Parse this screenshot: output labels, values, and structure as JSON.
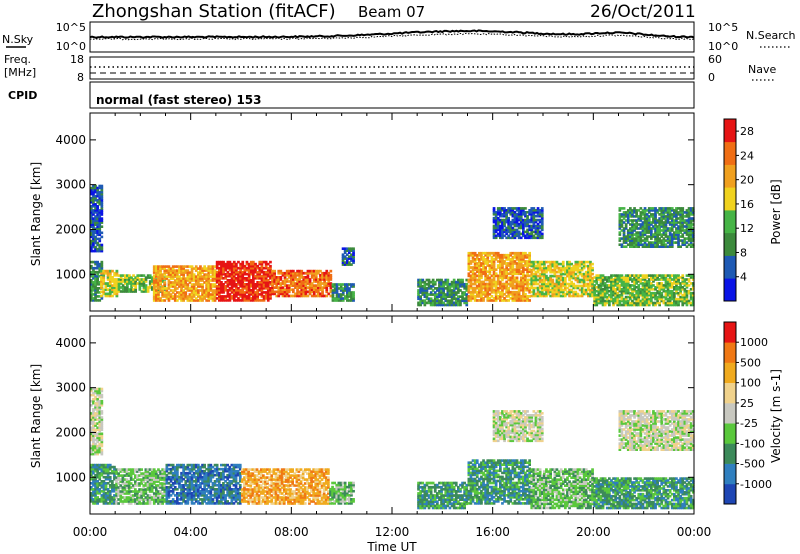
{
  "header": {
    "station": "Zhongshan Station (fitACF)",
    "beam": "Beam 07",
    "date": "26/Oct/2011"
  },
  "summary": {
    "nsky_label": "N.Sky",
    "nsky_ticks": [
      "10^5",
      "10^0"
    ],
    "nsearch_label": "N.Search",
    "nsearch_ticks": [
      "10^5",
      "10^0"
    ],
    "freq_label_1": "Freq.",
    "freq_label_2": "[MHz]",
    "freq_ticks": [
      "18",
      "8"
    ],
    "nave_label": "Nave",
    "nave_ticks": [
      "60",
      "0"
    ],
    "cpid_label": "CPID",
    "cpid_text": "normal (fast stereo) 153"
  },
  "colors": {
    "power_scale": [
      "#0a14e6",
      "#1e5ab4",
      "#3c8a3c",
      "#46b446",
      "#f0d21e",
      "#f0a01e",
      "#f06e14",
      "#e61414"
    ],
    "velocity_scale": [
      "#1e46b4",
      "#2f7fbf",
      "#3c8a5a",
      "#5ac83c",
      "#c8c8c0",
      "#f0d28c",
      "#f0aa1e",
      "#f07814",
      "#e61414"
    ]
  },
  "chart_data": [
    {
      "type": "heatmap",
      "title": "Power",
      "xlabel": "Time UT",
      "ylabel": "Slant Range [km]",
      "x_ticks": [
        "00:00",
        "04:00",
        "08:00",
        "12:00",
        "16:00",
        "20:00",
        "00:00"
      ],
      "x_range_hours": [
        0,
        24
      ],
      "y_ticks": [
        1000,
        2000,
        3000,
        4000
      ],
      "ylim": [
        180,
        4600
      ],
      "colorbar_label": "Power [dB]",
      "colorbar_ticks": [
        4,
        8,
        12,
        16,
        20,
        24,
        28
      ],
      "colorbar_range": [
        0,
        30
      ],
      "regions": [
        {
          "t": [
            0.0,
            0.5
          ],
          "r": [
            400,
            1300
          ],
          "level": 2
        },
        {
          "t": [
            0.4,
            1.1
          ],
          "r": [
            500,
            1100
          ],
          "level": 4
        },
        {
          "t": [
            1.1,
            3.0
          ],
          "r": [
            600,
            1000
          ],
          "level": 3
        },
        {
          "t": [
            2.5,
            5.0
          ],
          "r": [
            400,
            1200
          ],
          "level": 5
        },
        {
          "t": [
            5.0,
            7.2
          ],
          "r": [
            400,
            1300
          ],
          "level": 7
        },
        {
          "t": [
            7.2,
            9.6
          ],
          "r": [
            500,
            1100
          ],
          "level": 6
        },
        {
          "t": [
            9.6,
            10.5
          ],
          "r": [
            400,
            800
          ],
          "level": 2
        },
        {
          "t": [
            13.0,
            15.0
          ],
          "r": [
            300,
            900
          ],
          "level": 2
        },
        {
          "t": [
            15.0,
            17.5
          ],
          "r": [
            400,
            1500
          ],
          "level": 5
        },
        {
          "t": [
            17.5,
            20.0
          ],
          "r": [
            500,
            1300
          ],
          "level": 4
        },
        {
          "t": [
            20.0,
            24.0
          ],
          "r": [
            300,
            1000
          ],
          "level": 3
        },
        {
          "t": [
            16.0,
            18.0
          ],
          "r": [
            1800,
            2500
          ],
          "level": 1
        },
        {
          "t": [
            21.0,
            24.0
          ],
          "r": [
            1600,
            2500
          ],
          "level": 2
        },
        {
          "t": [
            0.0,
            0.5
          ],
          "r": [
            1500,
            3000
          ],
          "level": 1
        },
        {
          "t": [
            10.0,
            10.5
          ],
          "r": [
            1200,
            1600
          ],
          "level": 1
        }
      ]
    },
    {
      "type": "heatmap",
      "title": "Velocity",
      "xlabel": "Time UT",
      "ylabel": "Slant Range [km]",
      "x_ticks": [
        "00:00",
        "04:00",
        "08:00",
        "12:00",
        "16:00",
        "20:00",
        "00:00"
      ],
      "x_range_hours": [
        0,
        24
      ],
      "y_ticks": [
        1000,
        2000,
        3000,
        4000
      ],
      "ylim": [
        180,
        4600
      ],
      "colorbar_label": "Velocity [m s-1]",
      "colorbar_ticks": [
        "1000",
        "500",
        "100",
        "25",
        "-25",
        "-100",
        "-500",
        "-1000"
      ],
      "regions": [
        {
          "t": [
            0.0,
            1.0
          ],
          "r": [
            400,
            1300
          ],
          "level": 2
        },
        {
          "t": [
            1.0,
            3.0
          ],
          "r": [
            400,
            1200
          ],
          "level": 3
        },
        {
          "t": [
            3.0,
            6.0
          ],
          "r": [
            400,
            1300
          ],
          "level": 1
        },
        {
          "t": [
            6.0,
            9.5
          ],
          "r": [
            400,
            1200
          ],
          "level": 6
        },
        {
          "t": [
            9.5,
            10.5
          ],
          "r": [
            400,
            900
          ],
          "level": 3
        },
        {
          "t": [
            13.0,
            15.0
          ],
          "r": [
            300,
            900
          ],
          "level": 2
        },
        {
          "t": [
            15.0,
            17.5
          ],
          "r": [
            400,
            1400
          ],
          "level": 2
        },
        {
          "t": [
            17.5,
            20.0
          ],
          "r": [
            300,
            1200
          ],
          "level": 3
        },
        {
          "t": [
            20.0,
            24.0
          ],
          "r": [
            300,
            1000
          ],
          "level": 2
        },
        {
          "t": [
            16.0,
            18.0
          ],
          "r": [
            1800,
            2500
          ],
          "level": 4
        },
        {
          "t": [
            21.0,
            24.0
          ],
          "r": [
            1600,
            2500
          ],
          "level": 4
        },
        {
          "t": [
            0.0,
            0.5
          ],
          "r": [
            1500,
            3000
          ],
          "level": 4
        }
      ]
    }
  ]
}
